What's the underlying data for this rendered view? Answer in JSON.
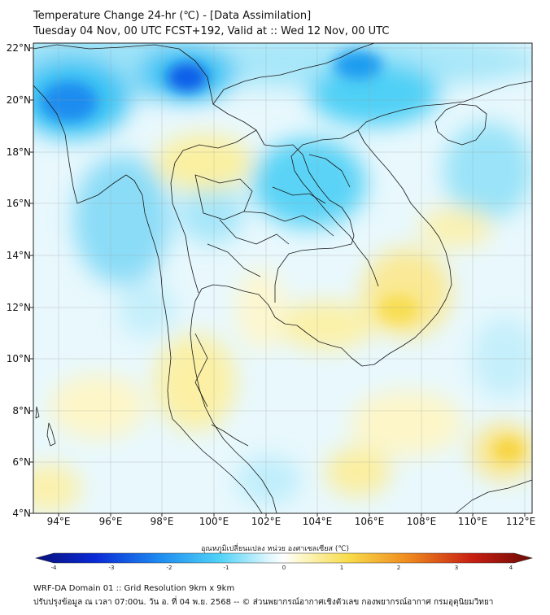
{
  "title_line1": "Temperature Change 24-hr (℃) - [Data Assimilation]",
  "title_line2": "Tuesday 04 Nov, 00 UTC FCST+192, Valid at :: Wed 12 Nov, 00 UTC",
  "lat_labels": [
    "22°N",
    "20°N",
    "18°N",
    "16°N",
    "14°N",
    "12°N",
    "10°N",
    "8°N",
    "6°N",
    "4°N"
  ],
  "lon_labels": [
    "94°E",
    "96°E",
    "98°E",
    "100°E",
    "102°E",
    "104°E",
    "106°E",
    "108°E",
    "110°E",
    "112°E"
  ],
  "colorbar": {
    "label": "อุณหภูมิเปลี่ยนแปลง หน่วย องศาเซลเซียส (℃)",
    "ticks": [
      "-4",
      "-3",
      "-2",
      "-1",
      "0",
      "1",
      "2",
      "3",
      "4"
    ],
    "min": -4,
    "max": 4
  },
  "footer_line1": "WRF-DA Domain 01 :: Grid Resolution 9km x 9km",
  "footer_line2": "ปรับปรุงข้อมูล ณ เวลา 07:00น. วัน อ. ที่ 04 พ.ย. 2568 -- © ส่วนพยากรณ์อากาศเชิงตัวเลข กองพยากรณ์อากาศ กรมอุตุนิยมวิทยา",
  "colors": {
    "deep_blue": "#0a2ad6",
    "blue": "#1e8cf0",
    "cyan": "#4fd2f7",
    "light_cyan": "#b8eefb",
    "white": "#ffffff",
    "light_yellow": "#fbf3a6",
    "yellow": "#f8dc4a",
    "orange": "#ef8a1e",
    "red": "#c81e12",
    "dark_red": "#6b0a05"
  }
}
